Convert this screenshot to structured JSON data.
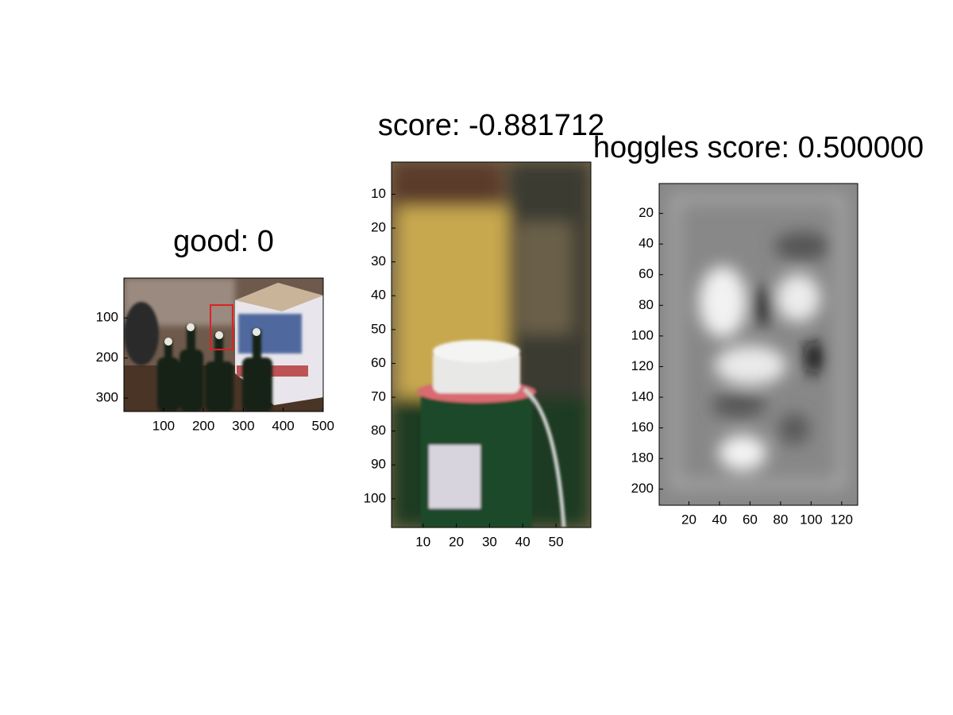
{
  "chart_data": [
    {
      "type": "image",
      "title": "good: 0",
      "xlim": [
        0.5,
        500.5
      ],
      "ylim": [
        0.5,
        333.5
      ],
      "xticks": [
        100,
        200,
        300,
        400,
        500
      ],
      "yticks": [
        100,
        200,
        300
      ]
    },
    {
      "type": "image",
      "title": "score: -0.881712",
      "xlim": [
        0.5,
        60.5
      ],
      "ylim": [
        0.5,
        108.5
      ],
      "xticks": [
        10,
        20,
        30,
        40,
        50
      ],
      "yticks": [
        10,
        20,
        30,
        40,
        50,
        60,
        70,
        80,
        90,
        100
      ]
    },
    {
      "type": "image",
      "title": "hoggles score: 0.500000",
      "xlim": [
        0.5,
        130.5
      ],
      "ylim": [
        0.5,
        210.5
      ],
      "xticks": [
        20,
        40,
        60,
        80,
        100,
        120
      ],
      "yticks": [
        20,
        40,
        60,
        80,
        100,
        120,
        140,
        160,
        180,
        200
      ]
    }
  ]
}
